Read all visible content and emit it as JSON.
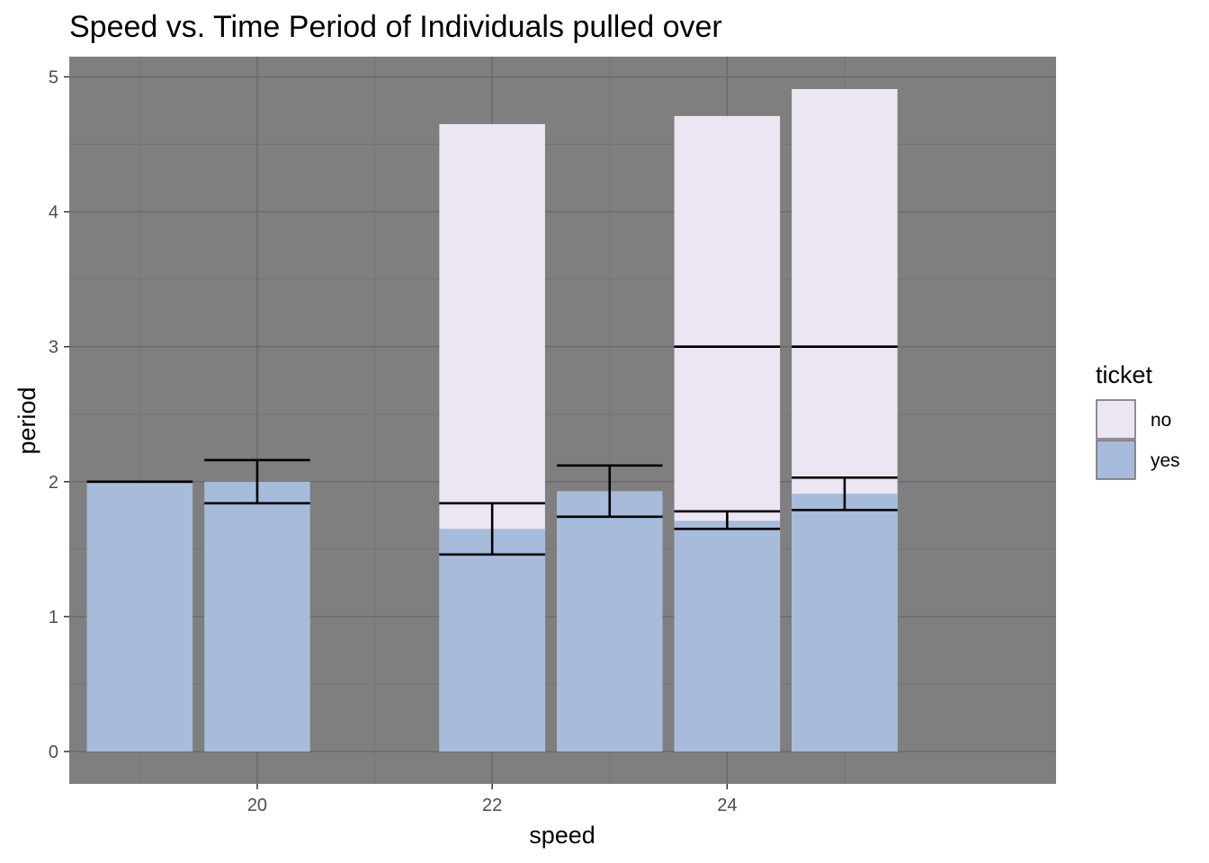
{
  "chart_data": {
    "type": "bar",
    "title": "Speed vs. Time Period of Individuals pulled over",
    "xlabel": "speed",
    "ylabel": "period",
    "x_ticks": [
      20,
      22,
      24
    ],
    "y_ticks": [
      0,
      1,
      2,
      3,
      4,
      5
    ],
    "xlim": [
      18.4,
      26.8
    ],
    "ylim": [
      -0.24,
      5.15
    ],
    "grid": true,
    "legend": {
      "title": "ticket",
      "position": "right",
      "entries": [
        {
          "label": "no",
          "color": "#ece6f3"
        },
        {
          "label": "yes",
          "color": "#a7bbda"
        }
      ]
    },
    "bar_width": 0.9,
    "series": [
      {
        "name": "no",
        "color": "#ece6f3",
        "points": [
          {
            "x": 22,
            "value": 4.65
          },
          {
            "x": 24,
            "value": 4.71
          },
          {
            "x": 25,
            "value": 4.91
          }
        ]
      },
      {
        "name": "yes",
        "color": "#a7bbda",
        "points": [
          {
            "x": 19,
            "value": 2.0
          },
          {
            "x": 20,
            "value": 2.0
          },
          {
            "x": 22,
            "value": 1.65
          },
          {
            "x": 23,
            "value": 1.93
          },
          {
            "x": 24,
            "value": 1.71
          },
          {
            "x": 25,
            "value": 1.91
          }
        ]
      }
    ],
    "error_bars": [
      {
        "x": 19,
        "low": 2.0,
        "high": 2.0
      },
      {
        "x": 20,
        "low": 1.84,
        "high": 2.16
      },
      {
        "x": 22,
        "low": 1.46,
        "high": 1.84
      },
      {
        "x": 23,
        "low": 1.74,
        "high": 2.12
      },
      {
        "x": 24,
        "low": 1.65,
        "high": 1.78
      },
      {
        "x": 24,
        "low": 3.0,
        "high": 3.0
      },
      {
        "x": 25,
        "low": 1.79,
        "high": 2.03
      },
      {
        "x": 25,
        "low": 3.0,
        "high": 3.0
      }
    ],
    "colors": {
      "panel_background": "#7f7f7f",
      "grid_major": "#6b6b6b",
      "grid_minor": "#757575",
      "error_bar": "#000000"
    }
  }
}
